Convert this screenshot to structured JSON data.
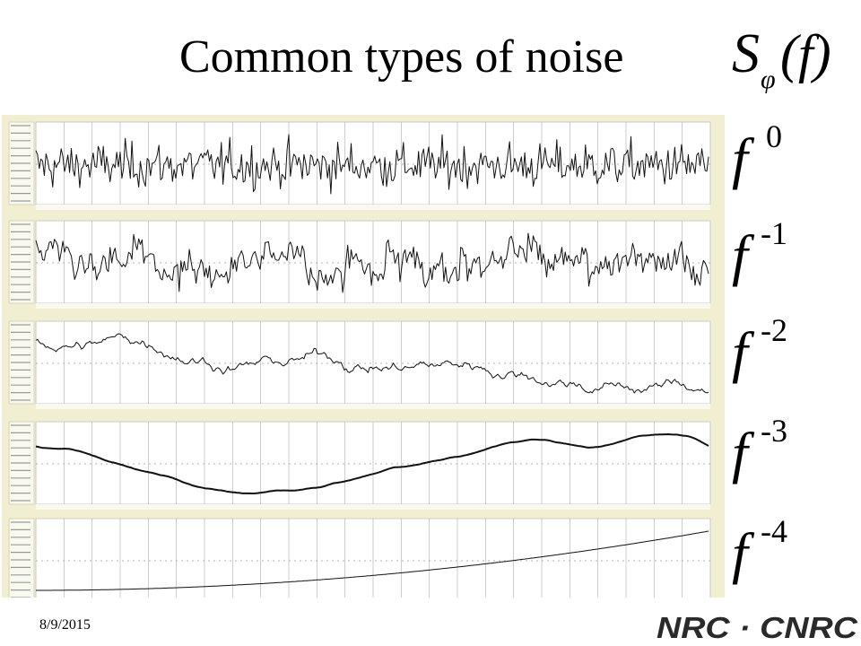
{
  "slide": {
    "title": "Common types of noise",
    "psd_symbol": "S",
    "psd_subscript": "φ",
    "psd_argument": "(f)",
    "date": "8/9/2015",
    "logo_text": "NRC · CNRC"
  },
  "panels": [
    {
      "exponent": "0"
    },
    {
      "exponent": "-1"
    },
    {
      "exponent": "-2"
    },
    {
      "exponent": "-3"
    },
    {
      "exponent": "-4"
    }
  ],
  "colors": {
    "panel_background": "#f2eed2",
    "plot_background": "#ffffff",
    "grid": "#b8b8b8",
    "trace": "#111111",
    "logo": "#2a2a2a"
  }
}
